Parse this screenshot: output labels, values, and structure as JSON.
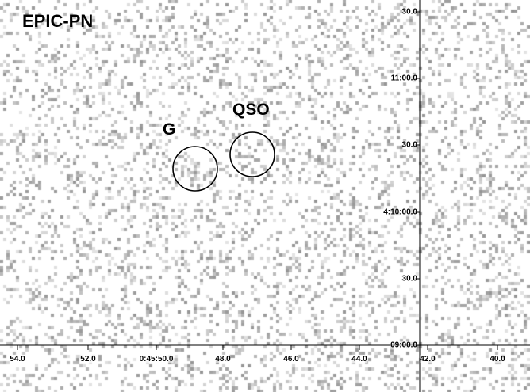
{
  "figure": {
    "panel_title": "EPIC-PN",
    "sources": [
      {
        "id": "g",
        "label": "G"
      },
      {
        "id": "qso",
        "label": "QSO"
      }
    ],
    "dec_ticks": [
      "30.0",
      "11:00.0",
      "30.0",
      "4:10:00.0",
      "30.0",
      "09:00.0"
    ],
    "ra_ticks": [
      "54.0",
      "52.0",
      "0:45:50.0",
      "48.0",
      "46.0",
      "44.0",
      "42.0",
      "40.0"
    ],
    "colors": {
      "background": "#ffffff",
      "pixel": "#b8b8b8",
      "axis": "#000000"
    }
  }
}
